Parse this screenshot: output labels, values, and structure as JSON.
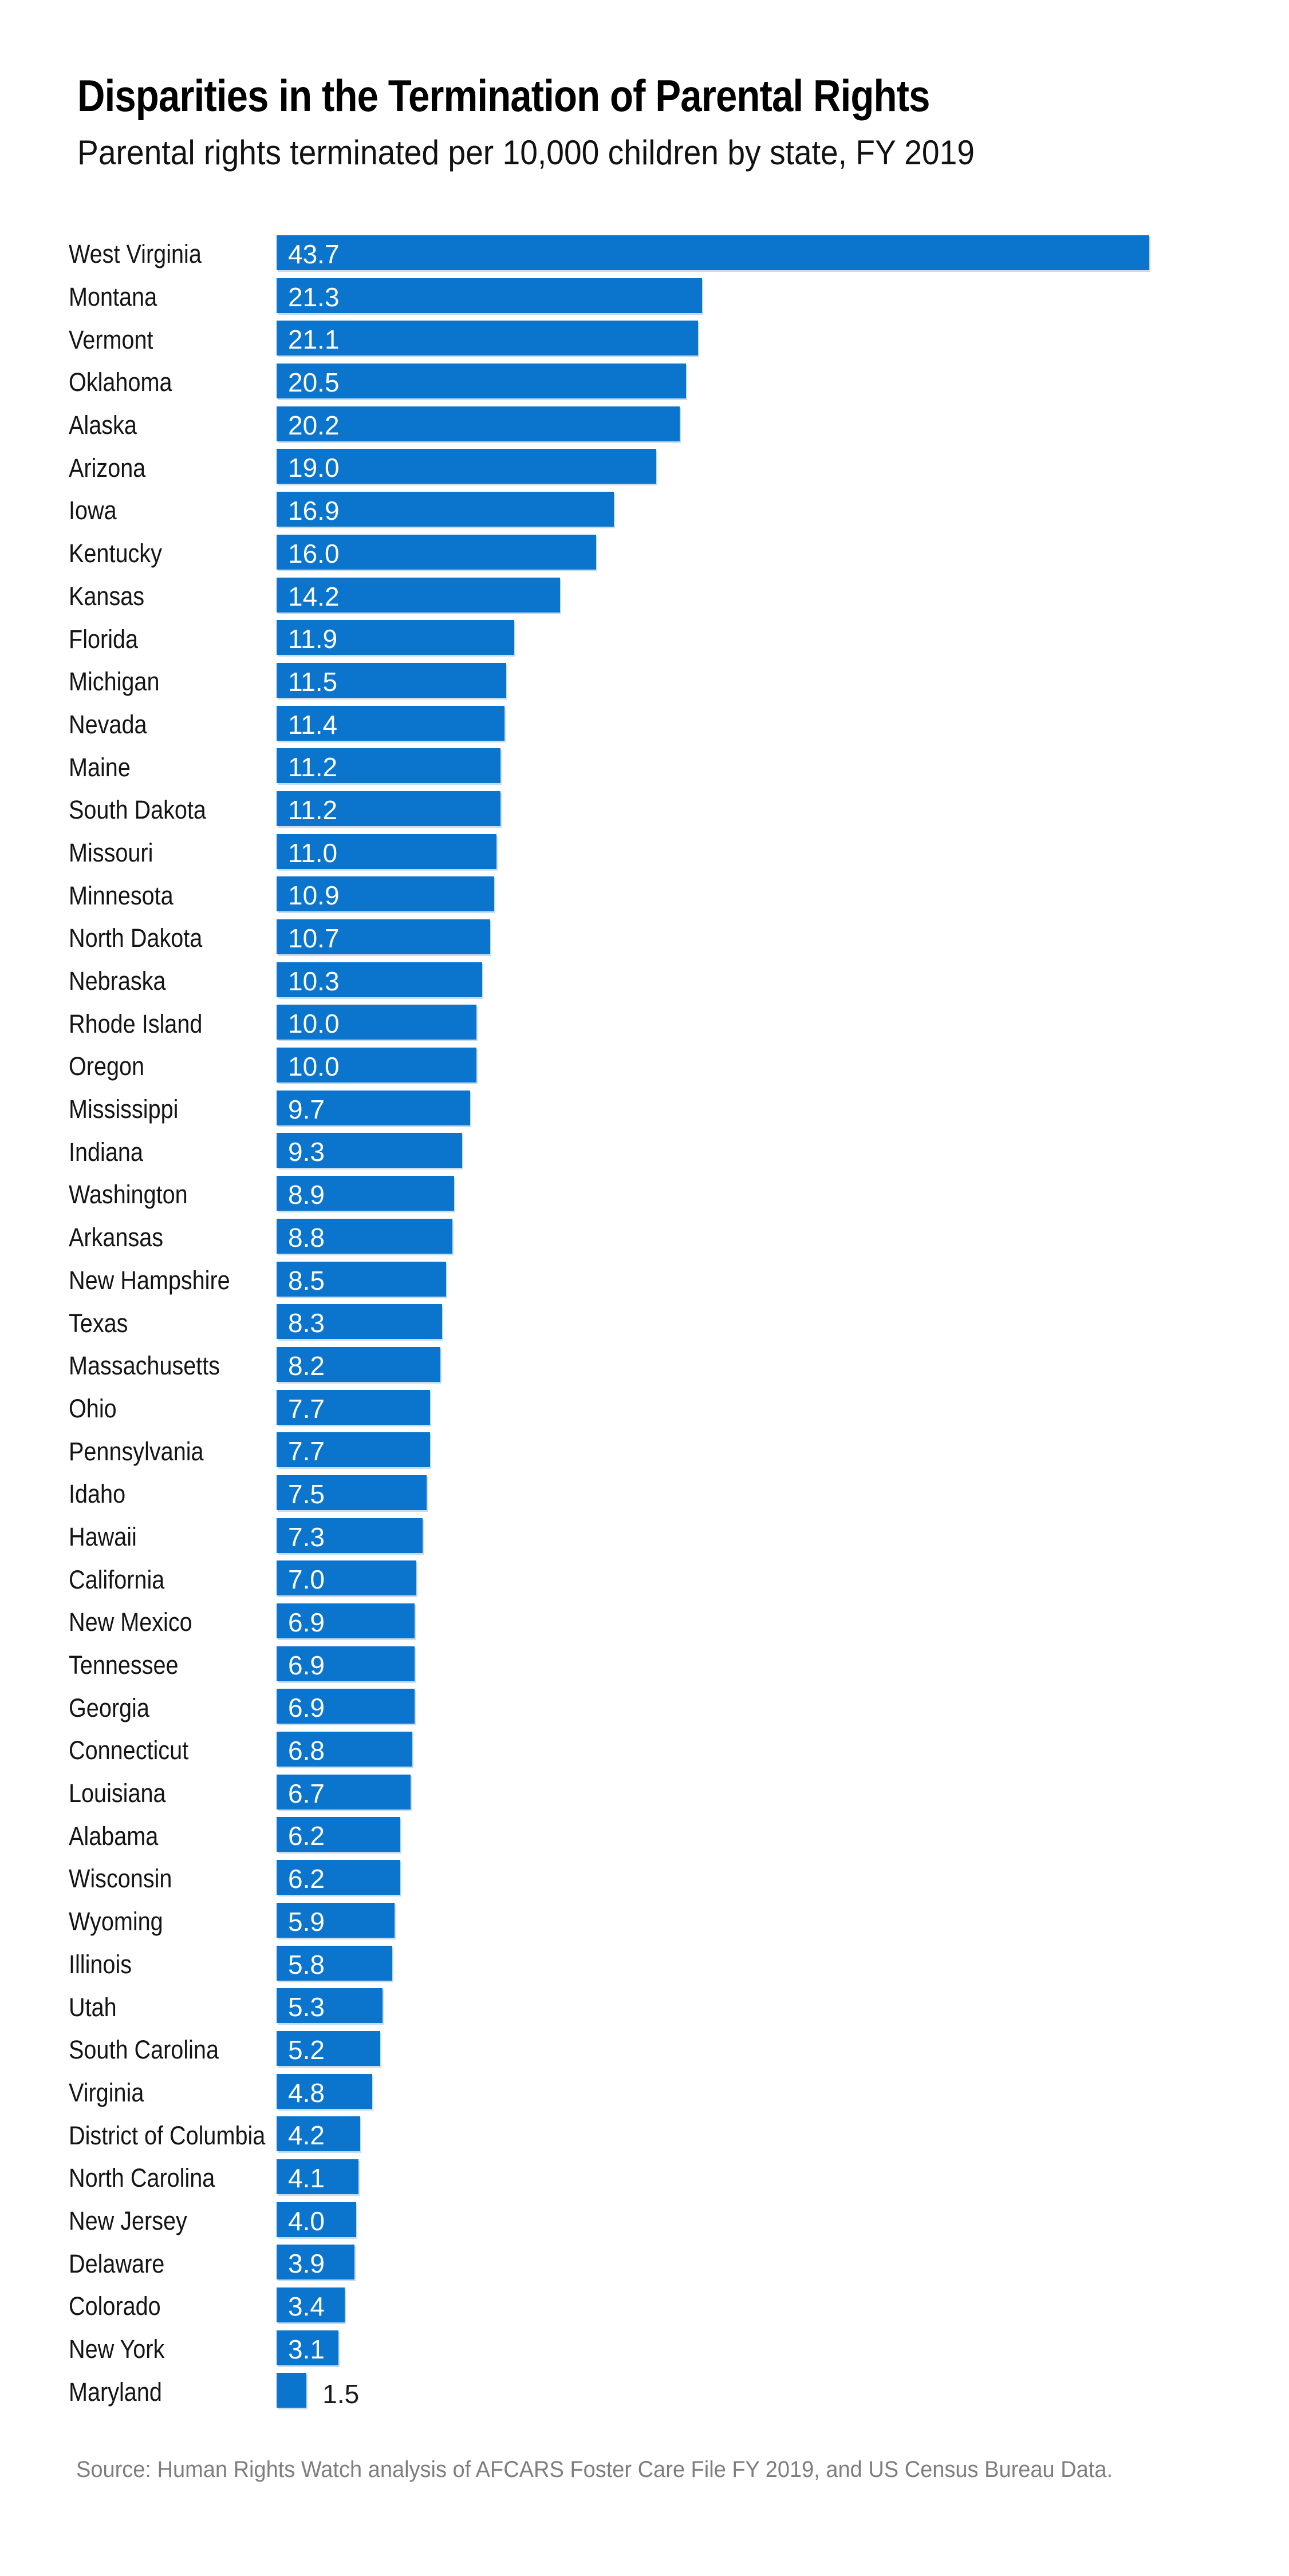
{
  "title": "Disparities in the Termination of Parental Rights",
  "subtitle": "Parental rights terminated per 10,000 children by state, FY 2019",
  "source": "Source: Human Rights Watch analysis of AFCARS Foster Care File FY 2019, and US Census Bureau Data.",
  "colors": {
    "bar": "#0b74cc",
    "bar_edge_shadow": "#c9dcee",
    "value_inside": "#ffffff",
    "value_outside": "#1a1a1a",
    "title_text": "#000000",
    "label_text": "#141414",
    "source_text": "#7e7e7e",
    "background": "#ffffff"
  },
  "chart_data": {
    "type": "bar",
    "orientation": "horizontal",
    "title": "Disparities in the Termination of Parental Rights",
    "subtitle": "Parental rights terminated per 10,000 children by state, FY 2019",
    "xlabel": "",
    "ylabel": "",
    "xlim": [
      0,
      45
    ],
    "grid": false,
    "legend": false,
    "value_labels_shown": true,
    "categories": [
      "West Virginia",
      "Montana",
      "Vermont",
      "Oklahoma",
      "Alaska",
      "Arizona",
      "Iowa",
      "Kentucky",
      "Kansas",
      "Florida",
      "Michigan",
      "Nevada",
      "Maine",
      "South Dakota",
      "Missouri",
      "Minnesota",
      "North Dakota",
      "Nebraska",
      "Rhode Island",
      "Oregon",
      "Mississippi",
      "Indiana",
      "Washington",
      "Arkansas",
      "New Hampshire",
      "Texas",
      "Massachusetts",
      "Ohio",
      "Pennsylvania",
      "Idaho",
      "Hawaii",
      "California",
      "New Mexico",
      "Tennessee",
      "Georgia",
      "Connecticut",
      "Louisiana",
      "Alabama",
      "Wisconsin",
      "Wyoming",
      "Illinois",
      "Utah",
      "South Carolina",
      "Virginia",
      "District of Columbia",
      "North Carolina",
      "New Jersey",
      "Delaware",
      "Colorado",
      "New York",
      "Maryland"
    ],
    "values": [
      43.7,
      21.3,
      21.1,
      20.5,
      20.2,
      19.0,
      16.9,
      16.0,
      14.2,
      11.9,
      11.5,
      11.4,
      11.2,
      11.2,
      11.0,
      10.9,
      10.7,
      10.3,
      10.0,
      10.0,
      9.7,
      9.3,
      8.9,
      8.8,
      8.5,
      8.3,
      8.2,
      7.7,
      7.7,
      7.5,
      7.3,
      7.0,
      6.9,
      6.9,
      6.9,
      6.8,
      6.7,
      6.2,
      6.2,
      5.9,
      5.8,
      5.3,
      5.2,
      4.8,
      4.2,
      4.1,
      4.0,
      3.9,
      3.4,
      3.1,
      1.5
    ],
    "value_labels": [
      "43.7",
      "21.3",
      "21.1",
      "20.5",
      "20.2",
      "19.0",
      "16.9",
      "16.0",
      "14.2",
      "11.9",
      "11.5",
      "11.4",
      "11.2",
      "11.2",
      "11.0",
      "10.9",
      "10.7",
      "10.3",
      "10.0",
      "10.0",
      "9.7",
      "9.3",
      "8.9",
      "8.8",
      "8.5",
      "8.3",
      "8.2",
      "7.7",
      "7.7",
      "7.5",
      "7.3",
      "7.0",
      "6.9",
      "6.9",
      "6.9",
      "6.8",
      "6.7",
      "6.2",
      "6.2",
      "5.9",
      "5.8",
      "5.3",
      "5.2",
      "4.8",
      "4.2",
      "4.1",
      "4.0",
      "3.9",
      "3.4",
      "3.1",
      "1.5"
    ]
  }
}
